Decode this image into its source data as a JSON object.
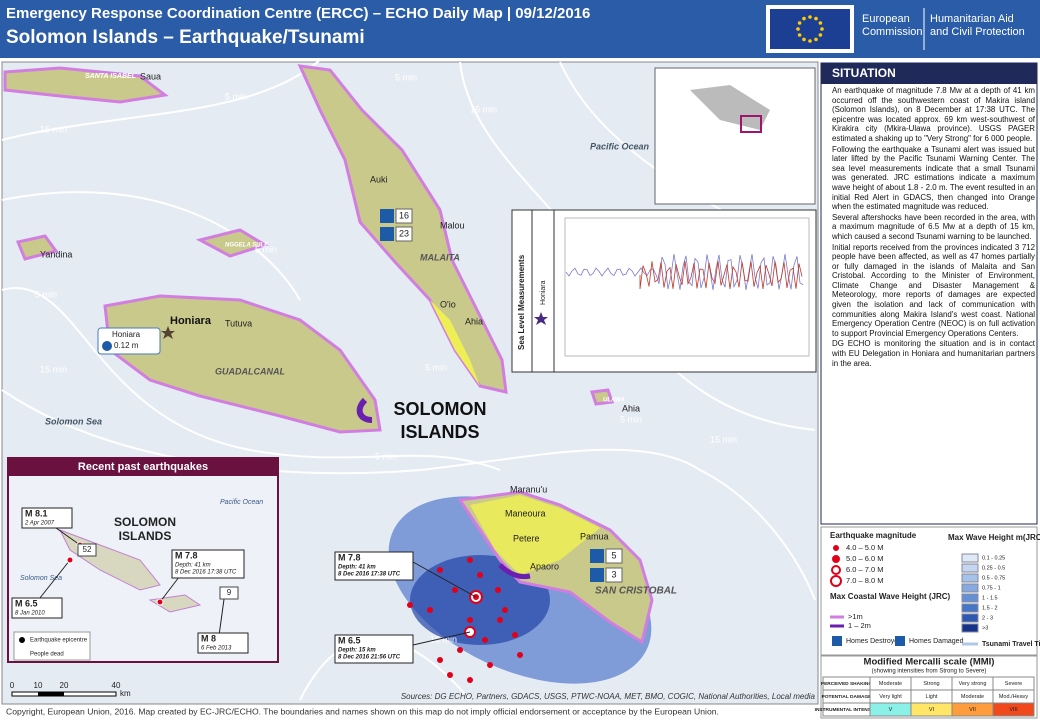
{
  "header": {
    "title": "Emergency Response Coordination Centre (ERCC) – ECHO Daily Map | 09/12/2016",
    "subtitle": "Solomon Islands – Earthquake/Tsunami",
    "logo": [
      "European",
      "Commission",
      "Humanitarian Aid",
      "and Civil Protection"
    ]
  },
  "map": {
    "labels": [
      "SANTA ISABEL",
      "Saua",
      "5 min",
      "5 min",
      "15 min",
      "15 min",
      "Pacific Ocean",
      "Auki",
      "Malou",
      "MALAITA",
      "Yandina",
      "NGGELA SULE",
      "5 min",
      "Honiara",
      "Tutuva",
      "GUADALCANAL",
      "O'io",
      "Ahia",
      "15 min",
      "5 min",
      "Solomon Sea",
      "SOLOMON",
      "ISLANDS",
      "ULAWA",
      "Ahia",
      "5 min",
      "15 min",
      "Maranu'u",
      "Maneoura",
      "Petere",
      "Pamua",
      "Apaoro",
      "SAN CRISTOBAL",
      "5 min",
      "15 min",
      "5 min"
    ],
    "honiara_callout": {
      "name": "Honiara",
      "wave": "0.12 m"
    },
    "homes": {
      "malaita_destroyed": 16,
      "malaita_damaged": 23,
      "makira_destroyed": 5,
      "makira_damaged": 3
    },
    "sea_level": {
      "title": "Sea Level Measurements",
      "station": "Honiara"
    },
    "epicentres": [
      {
        "magnitude": "M 7.8",
        "depth": "Depth: 41 km",
        "time": "8 Dec 2016 17:38 UTC"
      },
      {
        "magnitude": "M 6.5",
        "depth": "Depth: 15 km",
        "time": "8 Dec 2016 21:56 UTC"
      }
    ],
    "scale": [
      "0",
      "10",
      "20",
      "40"
    ],
    "scale_unit": "km"
  },
  "inset": {
    "title": "Recent past earthquakes",
    "country": [
      "SOLOMON",
      "ISLANDS"
    ],
    "sea": "Solomon Sea",
    "ocean": "Pacific Ocean",
    "events": [
      {
        "magnitude": "M 8.1",
        "date": "2 Apr 2007",
        "dead": 52
      },
      {
        "magnitude": "M 7.8",
        "date": "Depth: 41 km",
        "time": "8 Dec 2016 17:38 UTC"
      },
      {
        "magnitude": "M 6.5",
        "date": "8 Jan 2010"
      },
      {
        "magnitude": "M 8",
        "date": "6 Feb 2013",
        "dead": 9
      }
    ],
    "legend": [
      "Earthquake epicentre",
      "People dead"
    ]
  },
  "situation": {
    "heading": "SITUATION",
    "bullets": [
      "An earthquake of magnitude 7.8 Mw at a depth of 41 km occurred off the southwestern coast of Makira island (Solomon Islands), on 8 December at 17:38 UTC. The epicentre was located approx. 69 km west-southwest of Kirakira city (Mkira-Ulawa province). USGS PAGER estimated a shaking up to \"Very Strong\" for 6 000 people.",
      "Following the earthquake a Tsunami alert was issued but later lifted by the Pacific Tsunami Warning Center. The sea level measurements indicate that a small Tsunami was generated. JRC estimations indicate a maximum wave height of about 1.8 - 2.0 m. The event resulted in an initial Red Alert in GDACS, then changed into Orange when the estimated magnitude was reduced.",
      "Several aftershocks have been recorded in the area, with a maximum magnitude of 6.5 Mw at a depth of 15 km, which caused a second Tsunami warning to be launched.",
      "Initial reports received from the provinces indicated 3 712 people have been affected, as well as 47 homes partially or fully damaged in the islands of Malaita and San Cristobal. According to the Minister of Environment, Climate Change and Disaster Management & Meteorology, more reports of damages are expected given the isolation and lack of communication with communities along Makira Island's west coast. National Emergency Operation Centre (NEOC) is on full activation to support Provincial Emergency Operations Centers.",
      "DG ECHO is monitoring the situation and is in contact with EU Delegation in Honiara and humanitarian partners in the area."
    ]
  },
  "legend": {
    "magnitude_title": "Earthquake magnitude",
    "magnitudes": [
      "4.0 – 5.0 M",
      "5.0 – 6.0 M",
      "6.0 – 7.0 M",
      "7.0 – 8.0 M"
    ],
    "wave_title": "Max Wave Height m(JRC)",
    "wave_classes": [
      "0.1 - 0.25",
      "0.25 - 0.5",
      "0.5 - 0.75",
      "0.75 - 1",
      "1 - 1.5",
      "1.5 - 2",
      "2 - 3",
      ">3"
    ],
    "coastal_title": "Max Coastal Wave Height (JRC)",
    "coastal": [
      ">1m",
      "1 – 2m"
    ],
    "homes_destroyed": "Homes Destroyed",
    "homes_damaged": "Homes Damaged",
    "travel_time": "Tsunami Travel Time"
  },
  "mmi": {
    "title": "Modified Mercalli scale (MMI)",
    "subtitle": "(showing intensities from Strong to Severe)",
    "rows": [
      [
        "PERCEIVED SHAKING",
        "Moderate",
        "Strong",
        "Very strong",
        "Severe"
      ],
      [
        "POTENTIAL DAMAGE",
        "Very light",
        "Light",
        "Moderate",
        "Mod./Heavy"
      ],
      [
        "INSTRUMENTAL INTENSITY",
        "V",
        "VI",
        "VII",
        "VIII"
      ]
    ]
  },
  "sources": "Sources: DG ECHO, Partners, GDACS, USGS, PTWC-NOAA, MET, BMO, COGIC, National Authorities, Local media",
  "copyright": "Copyright, European Union, 2016. Map created by EC-JRC/ECHO. The boundaries and names shown on this map do not imply official endorsement or acceptance by the European Union."
}
